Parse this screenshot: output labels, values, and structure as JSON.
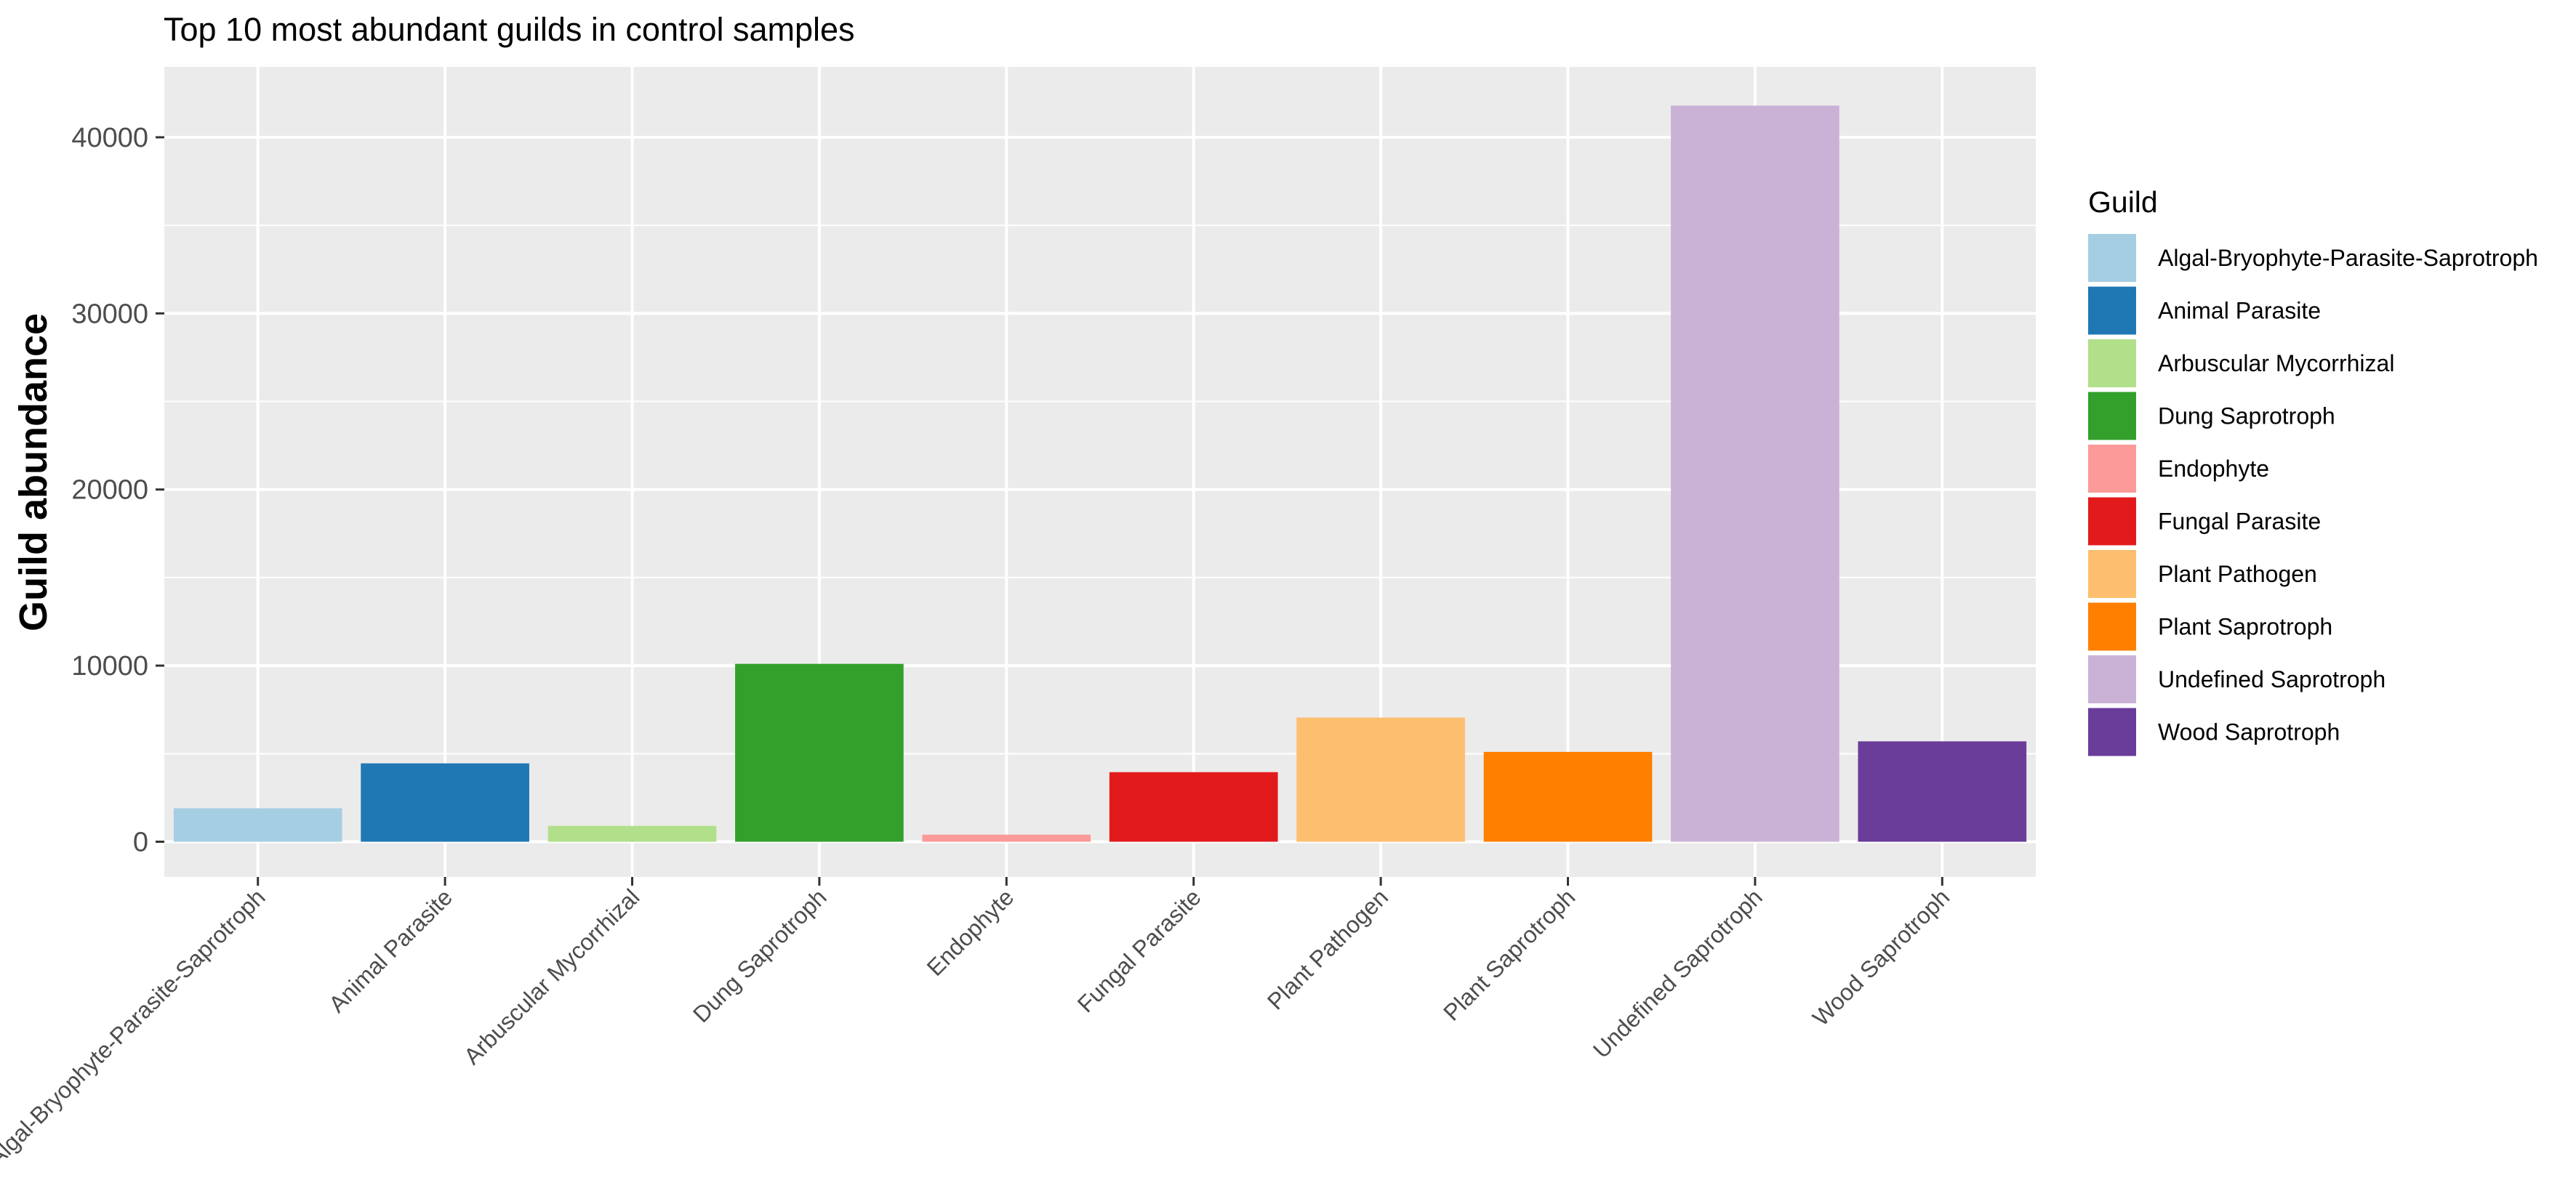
{
  "chart_data": {
    "type": "bar",
    "title": "Top 10 most abundant guilds in control samples",
    "xlabel": "",
    "ylabel": "Guild abundance",
    "categories": [
      "Algal-Bryophyte-Parasite-Saprotroph",
      "Animal Parasite",
      "Arbuscular Mycorrhizal",
      "Dung Saprotroph",
      "Endophyte",
      "Fungal Parasite",
      "Plant Pathogen",
      "Plant Saprotroph",
      "Undefined Saprotroph",
      "Wood Saprotroph"
    ],
    "values": [
      1900,
      4450,
      900,
      10100,
      400,
      3950,
      7050,
      5100,
      41800,
      5700
    ],
    "colors": [
      "#a6cee3",
      "#1f78b4",
      "#b2df8a",
      "#33a02c",
      "#fb9a99",
      "#e31a1c",
      "#fdbf6f",
      "#ff7f00",
      "#cab2d6",
      "#6a3d9a"
    ],
    "ylim": [
      -2000,
      44000
    ],
    "yticks": [
      0,
      10000,
      20000,
      30000,
      40000
    ],
    "ytick_labels": [
      "0",
      "10000",
      "20000",
      "30000",
      "40000"
    ],
    "grid": true,
    "legend": {
      "title": "Guild",
      "position": "right",
      "entries": [
        "Algal-Bryophyte-Parasite-Saprotroph",
        "Animal Parasite",
        "Arbuscular Mycorrhizal",
        "Dung Saprotroph",
        "Endophyte",
        "Fungal Parasite",
        "Plant Pathogen",
        "Plant Saprotroph",
        "Undefined Saprotroph",
        "Wood Saprotroph"
      ]
    }
  }
}
